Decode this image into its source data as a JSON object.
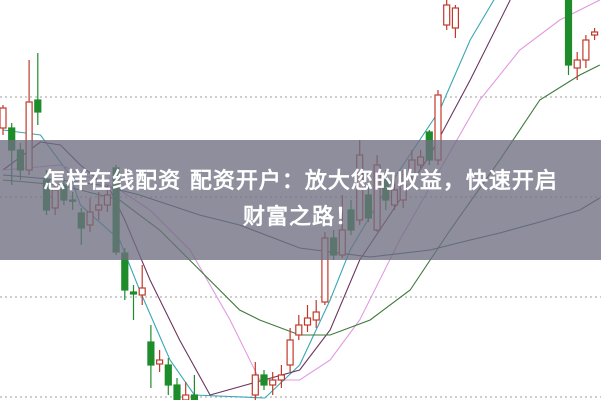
{
  "headline": {
    "line1": "怎样在线配资 配资开户：放大您的收益，快速开启",
    "line2": "财富之路！"
  },
  "colors": {
    "up": "#c0392b",
    "down": "#1e8c2a",
    "grid": "#b0b0b0",
    "ma_teal": "#3aa7b5",
    "ma_purple": "#6b3560",
    "ma_pink": "#e09ae0",
    "ma_green": "#3d7a3a",
    "ma_blue": "#3e5f73",
    "overlay": "#6e6e82"
  },
  "chart_data": {
    "type": "candlestick",
    "ylim": [
      0,
      100
    ],
    "grid": "horizontal-dotted",
    "grid_values": [
      0.75,
      25.75,
      50.75,
      75.75
    ],
    "candles_columns": [
      "index",
      "open",
      "close",
      "high",
      "low"
    ],
    "candles": [
      [
        0,
        68,
        73,
        73.75,
        66.25
      ],
      [
        1,
        68,
        62.5,
        69.25,
        53.75
      ],
      [
        2,
        62.5,
        57.5,
        64.25,
        55
      ],
      [
        3,
        57.5,
        74.5,
        85,
        56.25
      ],
      [
        4,
        75,
        72,
        86.75,
        68.75
      ],
      [
        5,
        55,
        47.5,
        57.5,
        46.25
      ],
      [
        6,
        48,
        52.5,
        53.75,
        46.25
      ],
      [
        7,
        53.75,
        50,
        55.5,
        48.75
      ],
      [
        8,
        50,
        49.75,
        52,
        47.5
      ],
      [
        9,
        46.75,
        43,
        48,
        38.75
      ],
      [
        10,
        43.75,
        47,
        50.5,
        42
      ],
      [
        11,
        47.5,
        48.75,
        52,
        45
      ],
      [
        12,
        48.75,
        51.25,
        53.75,
        47
      ],
      [
        13,
        58,
        37,
        58.75,
        36.25
      ],
      [
        14,
        36.75,
        27.5,
        38,
        25
      ],
      [
        15,
        27,
        26.5,
        28.75,
        20
      ],
      [
        16,
        26.25,
        28,
        33.75,
        23.75
      ],
      [
        17,
        14.5,
        8.75,
        18.75,
        3
      ],
      [
        18,
        9,
        10,
        12.5,
        7
      ],
      [
        19,
        8.75,
        3.75,
        10.5,
        1.25
      ],
      [
        20,
        3.75,
        -0.5,
        5.5,
        -1.25
      ],
      [
        21,
        0,
        1.25,
        4.5,
        -1.25
      ],
      [
        22,
        1.25,
        -0.5,
        6.25,
        -1.25
      ],
      [
        29,
        1.25,
        6.25,
        9.5,
        0
      ],
      [
        30,
        6.25,
        3.75,
        7.5,
        2.5
      ],
      [
        31,
        3.75,
        5,
        7,
        1.25
      ],
      [
        32,
        5,
        6.25,
        8.75,
        3
      ],
      [
        33,
        8.75,
        15,
        18,
        7
      ],
      [
        34,
        16.25,
        18.75,
        21.25,
        15
      ],
      [
        35,
        18.75,
        20.5,
        23.75,
        17
      ],
      [
        36,
        20,
        22,
        25,
        18
      ],
      [
        37,
        24.5,
        40.5,
        42,
        23.75
      ],
      [
        38,
        40.5,
        36.25,
        42.5,
        35
      ],
      [
        39,
        36.25,
        42.5,
        51.25,
        35.5
      ],
      [
        40,
        47.5,
        42.5,
        50,
        41.25
      ],
      [
        41,
        45,
        61.25,
        65,
        43.75
      ],
      [
        42,
        51.25,
        45.5,
        53.75,
        44.5
      ],
      [
        43,
        42.5,
        58.75,
        61.25,
        42
      ],
      [
        44,
        55,
        50,
        57.5,
        47.5
      ],
      [
        45,
        48.75,
        52.5,
        56.25,
        47.5
      ],
      [
        46,
        50,
        53.75,
        57.5,
        48
      ],
      [
        47,
        56.25,
        60,
        62.5,
        55
      ],
      [
        48,
        58.75,
        60.75,
        62.5,
        57.5
      ],
      [
        49,
        67,
        60,
        67.5,
        58.75
      ],
      [
        50,
        60,
        76.25,
        77.5,
        58.75
      ],
      [
        51,
        93.75,
        98.75,
        100,
        92.5
      ],
      [
        52,
        93,
        98,
        98.75,
        90.5
      ],
      [
        65,
        100,
        83.75,
        101,
        81.25
      ],
      [
        66,
        83,
        85,
        87,
        80
      ],
      [
        67,
        85,
        90,
        91.25,
        83
      ],
      [
        68,
        91.25,
        92,
        93,
        90
      ]
    ],
    "moving_averages": [
      {
        "color": "#3aa7b5",
        "points": [
          [
            0,
            67.5
          ],
          [
            4.3,
            66.25
          ],
          [
            7.7,
            56.25
          ],
          [
            8.9,
            48.75
          ],
          [
            13.4,
            40
          ],
          [
            15.7,
            27.5
          ],
          [
            19.2,
            10
          ],
          [
            22,
            1.25
          ],
          [
            30.1,
            0.5
          ],
          [
            34.1,
            8.75
          ],
          [
            37.6,
            25
          ],
          [
            39.9,
            37.5
          ],
          [
            43.3,
            50
          ],
          [
            47.9,
            65
          ],
          [
            50.2,
            72.5
          ],
          [
            53.7,
            90
          ],
          [
            57.1,
            102.5
          ]
        ]
      },
      {
        "color": "#6b3560",
        "points": [
          [
            0,
            57.5
          ],
          [
            4.3,
            64.5
          ],
          [
            6.6,
            63.75
          ],
          [
            8.9,
            58.75
          ],
          [
            12.3,
            52.5
          ],
          [
            14,
            45
          ],
          [
            16.9,
            30
          ],
          [
            20.3,
            15
          ],
          [
            23.8,
            1.25
          ],
          [
            34.1,
            7.5
          ],
          [
            37.6,
            17.5
          ],
          [
            41,
            35
          ],
          [
            45.6,
            50
          ],
          [
            49.1,
            61.25
          ],
          [
            53.7,
            80
          ],
          [
            58.3,
            100
          ]
        ]
      },
      {
        "color": "#e09ae0",
        "points": [
          [
            0,
            57.5
          ],
          [
            6.6,
            58.75
          ],
          [
            13.4,
            52.5
          ],
          [
            16.9,
            47.5
          ],
          [
            21.5,
            37.5
          ],
          [
            26.1,
            20
          ],
          [
            29.5,
            5
          ],
          [
            34.1,
            5
          ],
          [
            37.6,
            10
          ],
          [
            41,
            20
          ],
          [
            45.6,
            40
          ],
          [
            50.2,
            57.5
          ],
          [
            54.8,
            75
          ],
          [
            59.4,
            87.5
          ],
          [
            64,
            95
          ],
          [
            68.6,
            100
          ]
        ]
      },
      {
        "color": "#3d7a3a",
        "points": [
          [
            0,
            55
          ],
          [
            6.6,
            53.75
          ],
          [
            13.4,
            50
          ],
          [
            18,
            42.5
          ],
          [
            22.6,
            32.5
          ],
          [
            27.2,
            22.5
          ],
          [
            29.5,
            20
          ],
          [
            34.1,
            16.25
          ],
          [
            37.6,
            16.25
          ],
          [
            42.2,
            20
          ],
          [
            46.8,
            27.5
          ],
          [
            51.4,
            42.5
          ],
          [
            57.1,
            60
          ],
          [
            61.7,
            75
          ],
          [
            66.3,
            81.25
          ],
          [
            68.6,
            83.75
          ]
        ]
      },
      {
        "color": "#3e5f73",
        "points": [
          [
            0,
            56.25
          ],
          [
            6.6,
            55
          ],
          [
            11.1,
            53.75
          ],
          [
            15.7,
            51.25
          ],
          [
            22.6,
            46.25
          ],
          [
            27.2,
            43.75
          ],
          [
            34.1,
            38
          ],
          [
            42.2,
            35.75
          ],
          [
            49.1,
            37.5
          ],
          [
            53.7,
            40
          ],
          [
            57.1,
            41.75
          ],
          [
            61.7,
            44.5
          ],
          [
            66.3,
            47.5
          ],
          [
            68.6,
            50.5
          ]
        ]
      }
    ]
  }
}
